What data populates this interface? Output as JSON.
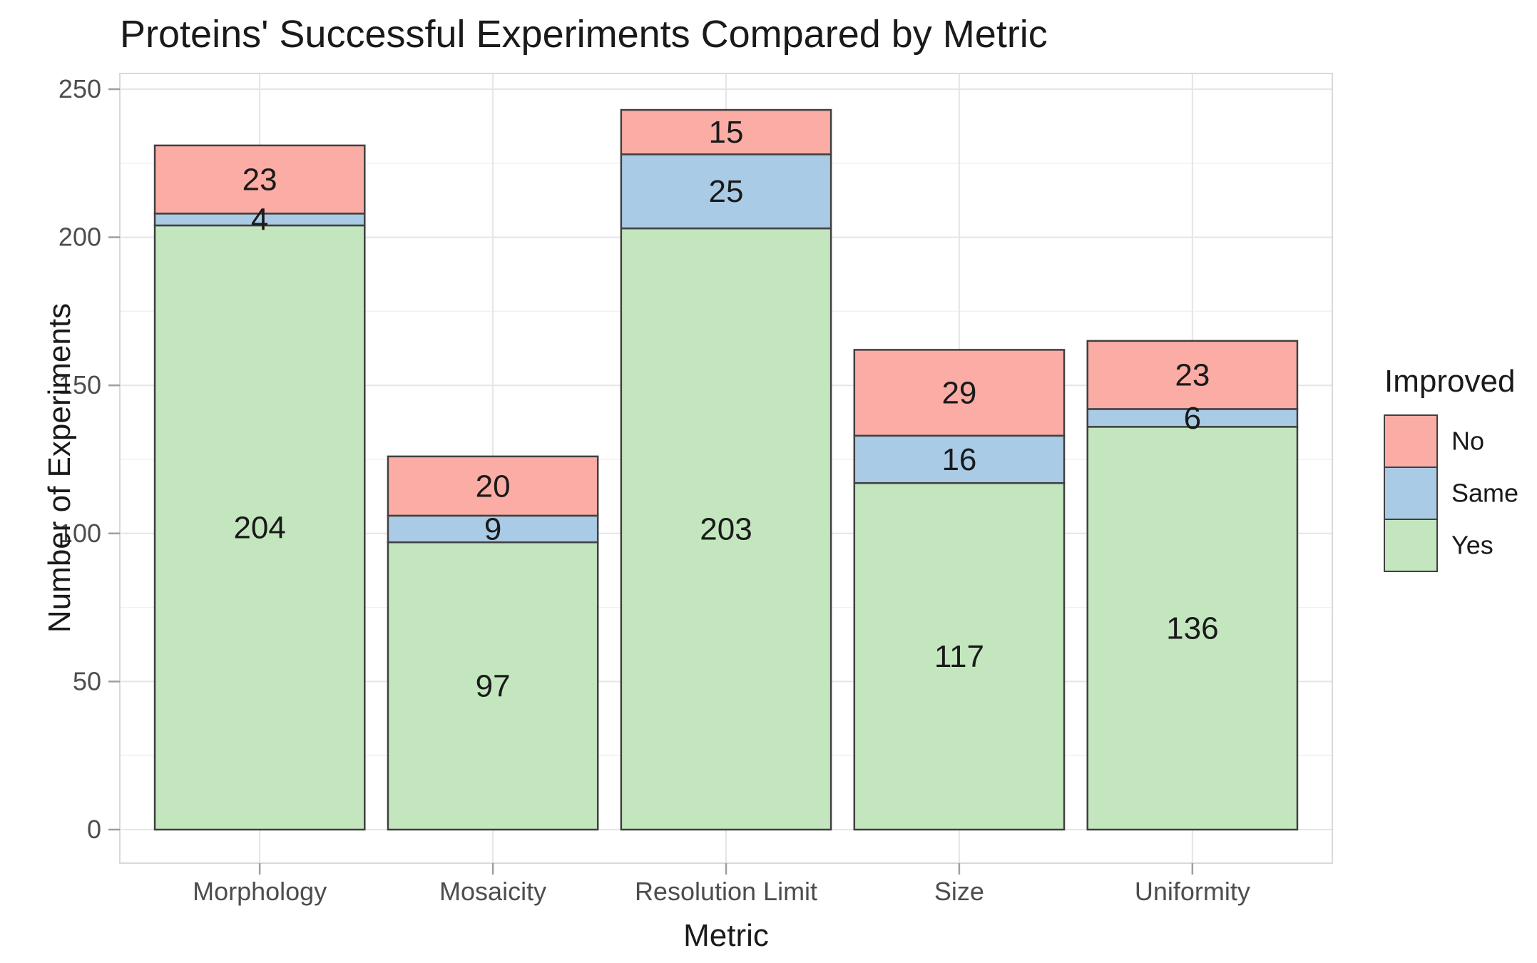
{
  "title": "Proteins' Successful Experiments Compared by Metric",
  "x_axis": {
    "label": "Metric",
    "categories": [
      "Morphology",
      "Mosaicity",
      "Resolution Limit",
      "Size",
      "Uniformity"
    ]
  },
  "y_axis": {
    "label": "Number of Experiments",
    "ticks": [
      0,
      50,
      100,
      150,
      200,
      250
    ],
    "minor_ticks": [
      25,
      75,
      125,
      175,
      225
    ]
  },
  "legend": {
    "title": "Improved",
    "entries": [
      {
        "label": "No",
        "color": "#FBACA5"
      },
      {
        "label": "Same",
        "color": "#A9CBE6"
      },
      {
        "label": "Yes",
        "color": "#C3E6BE"
      }
    ]
  },
  "chart_data": {
    "type": "bar",
    "stacked": true,
    "title": "Proteins' Successful Experiments Compared by Metric",
    "xlabel": "Metric",
    "ylabel": "Number of Experiments",
    "categories": [
      "Morphology",
      "Mosaicity",
      "Resolution Limit",
      "Size",
      "Uniformity"
    ],
    "series": [
      {
        "name": "Yes",
        "color": "#C3E6BE",
        "values": [
          204,
          97,
          203,
          117,
          136
        ]
      },
      {
        "name": "Same",
        "color": "#A9CBE6",
        "values": [
          4,
          9,
          25,
          16,
          6
        ]
      },
      {
        "name": "No",
        "color": "#FBACA5",
        "values": [
          23,
          20,
          15,
          29,
          23
        ]
      }
    ],
    "totals": [
      231,
      126,
      243,
      162,
      165
    ],
    "bar_value_labels": true,
    "ylim": [
      0,
      250
    ],
    "grid": true,
    "legend_title": "Improved",
    "legend_position": "right"
  },
  "colors": {
    "background": "#FFFFFF",
    "panel_border": "#D9D9D9",
    "grid_major": "#E5E5E5",
    "grid_minor": "#F1F1F1",
    "segment_stroke": "#404040",
    "axis_text": "#4D4D4D",
    "tick_mark": "#9E9E9E",
    "text": "#1A1A1A"
  }
}
